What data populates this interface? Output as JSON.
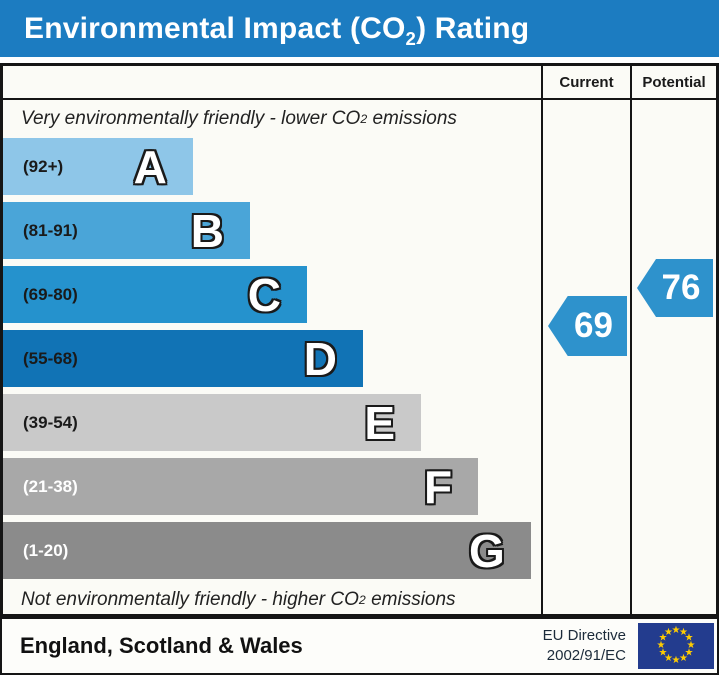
{
  "title": {
    "prefix": "Environmental Impact (CO",
    "sub": "2",
    "suffix": ") Rating"
  },
  "columns": {
    "current": "Current",
    "potential": "Potential"
  },
  "chart_data": {
    "type": "bar",
    "title": "Environmental Impact (CO2) Rating",
    "top_note": {
      "prefix": "Very environmentally friendly - lower CO",
      "sub": "2",
      "suffix": " emissions"
    },
    "bottom_note": {
      "prefix": "Not environmentally friendly - higher CO",
      "sub": "2",
      "suffix": " emissions"
    },
    "bands": [
      {
        "letter": "A",
        "range_label": "(92+)",
        "min": 92,
        "max": 100,
        "color": "#8ec6e8",
        "label_color": "#1a1a1a",
        "width_pct": 35.3
      },
      {
        "letter": "B",
        "range_label": "(81-91)",
        "min": 81,
        "max": 91,
        "color": "#4aa5d8",
        "label_color": "#1a1a1a",
        "width_pct": 45.9
      },
      {
        "letter": "C",
        "range_label": "(69-80)",
        "min": 69,
        "max": 80,
        "color": "#2592cd",
        "label_color": "#1a1a1a",
        "width_pct": 56.5
      },
      {
        "letter": "D",
        "range_label": "(55-68)",
        "min": 55,
        "max": 68,
        "color": "#1173b5",
        "label_color": "#1a1a1a",
        "width_pct": 66.9
      },
      {
        "letter": "E",
        "range_label": "(39-54)",
        "min": 39,
        "max": 54,
        "color": "#c9c9c9",
        "label_color": "#1a1a1a",
        "width_pct": 77.7
      },
      {
        "letter": "F",
        "range_label": "(21-38)",
        "min": 21,
        "max": 38,
        "color": "#a8a8a8",
        "label_color": "#ffffff",
        "width_pct": 88.3
      },
      {
        "letter": "G",
        "range_label": "(1-20)",
        "min": 1,
        "max": 20,
        "color": "#8b8b8b",
        "label_color": "#ffffff",
        "width_pct": 98.1
      }
    ],
    "current": {
      "value": "69",
      "band": "C",
      "color": "#2e92cc"
    },
    "potential": {
      "value": "76",
      "band": "C",
      "color": "#2e92cc"
    }
  },
  "footer": {
    "region": "England, Scotland & Wales",
    "directive_line1": "EU Directive",
    "directive_line2": "2002/91/EC",
    "flag": {
      "name": "eu-flag",
      "background": "#233c8e",
      "star_color": "#ffcc00",
      "star_count": 12
    }
  },
  "colors": {
    "title_bar": "#1c7cc1",
    "chart_background": "#fbfbf6",
    "border": "#151515"
  }
}
